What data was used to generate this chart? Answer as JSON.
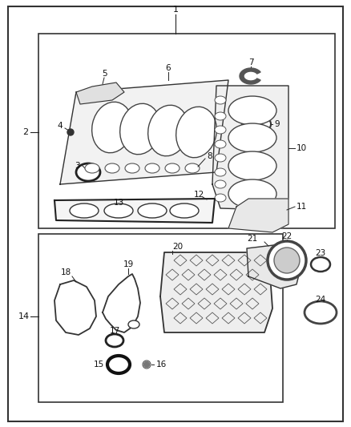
{
  "bg_color": "#ffffff",
  "fig_width": 4.38,
  "fig_height": 5.33,
  "dpi": 100,
  "lc": "#222222"
}
